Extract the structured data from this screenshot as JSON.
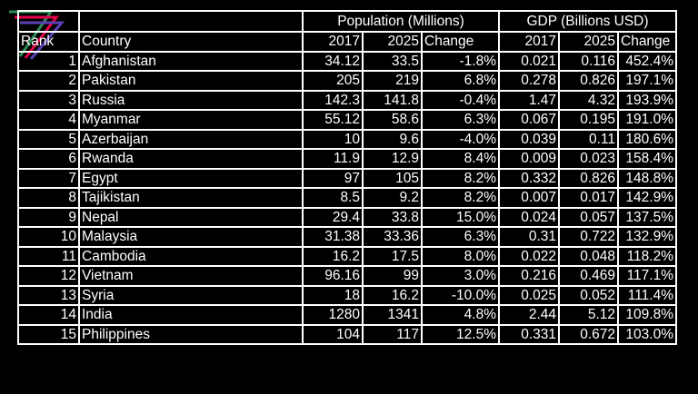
{
  "logo": {
    "icon": "seven-stripes-logo-icon",
    "colors": [
      "#2e8b57",
      "#e4004b",
      "#5a3fb8"
    ]
  },
  "headers": {
    "population_group": "Population (Millions)",
    "gdp_group": "GDP (Billions USD)",
    "rank": "Rank",
    "country": "Country",
    "pop_2017": "2017",
    "pop_2025": "2025",
    "pop_change": "Change",
    "gdp_2017": "2017",
    "gdp_2025": "2025",
    "gdp_change": "Change"
  },
  "rows": [
    {
      "rank": "1",
      "country": "Afghanistan",
      "pop_2017": "34.12",
      "pop_2025": "33.5",
      "pop_change": "-1.8%",
      "gdp_2017": "0.021",
      "gdp_2025": "0.116",
      "gdp_change": "452.4%"
    },
    {
      "rank": "2",
      "country": "Pakistan",
      "pop_2017": "205",
      "pop_2025": "219",
      "pop_change": "6.8%",
      "gdp_2017": "0.278",
      "gdp_2025": "0.826",
      "gdp_change": "197.1%"
    },
    {
      "rank": "3",
      "country": "Russia",
      "pop_2017": "142.3",
      "pop_2025": "141.8",
      "pop_change": "-0.4%",
      "gdp_2017": "1.47",
      "gdp_2025": "4.32",
      "gdp_change": "193.9%"
    },
    {
      "rank": "4",
      "country": "Myanmar",
      "pop_2017": "55.12",
      "pop_2025": "58.6",
      "pop_change": "6.3%",
      "gdp_2017": "0.067",
      "gdp_2025": "0.195",
      "gdp_change": "191.0%"
    },
    {
      "rank": "5",
      "country": "Azerbaijan",
      "pop_2017": "10",
      "pop_2025": "9.6",
      "pop_change": "-4.0%",
      "gdp_2017": "0.039",
      "gdp_2025": "0.11",
      "gdp_change": "180.6%"
    },
    {
      "rank": "6",
      "country": "Rwanda",
      "pop_2017": "11.9",
      "pop_2025": "12.9",
      "pop_change": "8.4%",
      "gdp_2017": "0.009",
      "gdp_2025": "0.023",
      "gdp_change": "158.4%"
    },
    {
      "rank": "7",
      "country": "Egypt",
      "pop_2017": "97",
      "pop_2025": "105",
      "pop_change": "8.2%",
      "gdp_2017": "0.332",
      "gdp_2025": "0.826",
      "gdp_change": "148.8%"
    },
    {
      "rank": "8",
      "country": "Tajikistan",
      "pop_2017": "8.5",
      "pop_2025": "9.2",
      "pop_change": "8.2%",
      "gdp_2017": "0.007",
      "gdp_2025": "0.017",
      "gdp_change": "142.9%"
    },
    {
      "rank": "9",
      "country": "Nepal",
      "pop_2017": "29.4",
      "pop_2025": "33.8",
      "pop_change": "15.0%",
      "gdp_2017": "0.024",
      "gdp_2025": "0.057",
      "gdp_change": "137.5%"
    },
    {
      "rank": "10",
      "country": "Malaysia",
      "pop_2017": "31.38",
      "pop_2025": "33.36",
      "pop_change": "6.3%",
      "gdp_2017": "0.31",
      "gdp_2025": "0.722",
      "gdp_change": "132.9%"
    },
    {
      "rank": "11",
      "country": "Cambodia",
      "pop_2017": "16.2",
      "pop_2025": "17.5",
      "pop_change": "8.0%",
      "gdp_2017": "0.022",
      "gdp_2025": "0.048",
      "gdp_change": "118.2%"
    },
    {
      "rank": "12",
      "country": "Vietnam",
      "pop_2017": "96.16",
      "pop_2025": "99",
      "pop_change": "3.0%",
      "gdp_2017": "0.216",
      "gdp_2025": "0.469",
      "gdp_change": "117.1%"
    },
    {
      "rank": "13",
      "country": "Syria",
      "pop_2017": "18",
      "pop_2025": "16.2",
      "pop_change": "-10.0%",
      "gdp_2017": "0.025",
      "gdp_2025": "0.052",
      "gdp_change": "111.4%"
    },
    {
      "rank": "14",
      "country": "India",
      "pop_2017": "1280",
      "pop_2025": "1341",
      "pop_change": "4.8%",
      "gdp_2017": "2.44",
      "gdp_2025": "5.12",
      "gdp_change": "109.8%"
    },
    {
      "rank": "15",
      "country": "Philippines",
      "pop_2017": "104",
      "pop_2025": "117",
      "pop_change": "12.5%",
      "gdp_2017": "0.331",
      "gdp_2025": "0.672",
      "gdp_change": "103.0%"
    }
  ]
}
